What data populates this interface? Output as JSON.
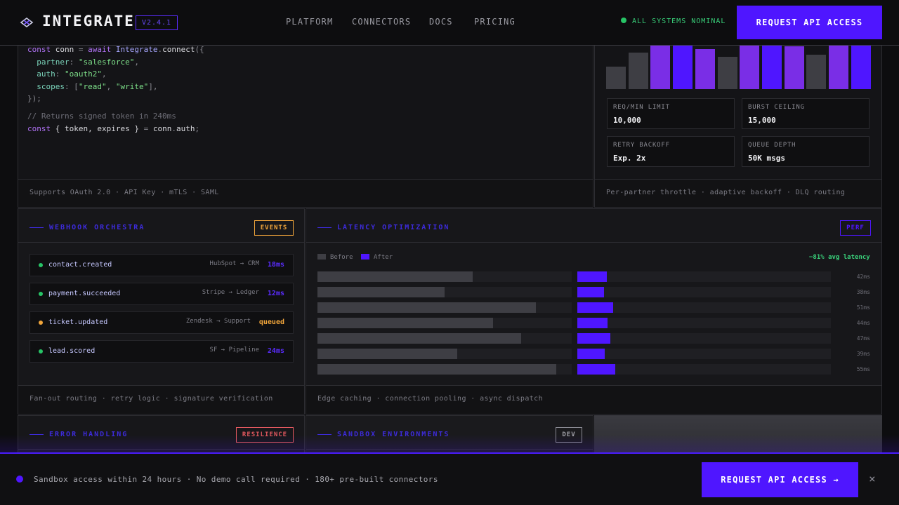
{
  "header": {
    "logo": "INTEGRATE",
    "version": "V2.4.1",
    "nav": [
      "PLATFORM",
      "CONNECTORS",
      "DOCS",
      "PRICING"
    ],
    "status": "ALL SYSTEMS NOMINAL",
    "cta": "REQUEST API ACCESS"
  },
  "code_panel": {
    "lines": {
      "l1_a": "const",
      "l1_b": " conn ",
      "l1_c": "= ",
      "l1_d": "await",
      "l1_e": " Integrate",
      "l1_f": ".",
      "l1_g": "connect",
      "l1_h": "({",
      "l2_key": "partner",
      "l2_val": "\"salesforce\"",
      "l3_key": "auth",
      "l3_val": "\"oauth2\"",
      "l4_key": "scopes",
      "l4_v1": "\"read\"",
      "l4_v2": "\"write\"",
      "l5": "});",
      "l6": "// Returns signed token in 240ms",
      "l7_a": "const",
      "l7_b": " { token, expires } ",
      "l7_c": "= ",
      "l7_d": "conn",
      "l7_e": ".",
      "l7_f": "auth",
      "l7_g": ";"
    },
    "footer": "Supports OAuth 2.0 · API Key · mTLS · SAML"
  },
  "throttle_panel": {
    "bars": [
      {
        "value": 0.52,
        "color": "#3e3e44"
      },
      {
        "value": 0.84,
        "color": "#3e3e44"
      },
      {
        "value": 1.0,
        "color": "#7a2ee6"
      },
      {
        "value": 1.0,
        "color": "#4f16ff"
      },
      {
        "value": 0.92,
        "color": "#7a2ee6"
      },
      {
        "value": 0.74,
        "color": "#3e3e44"
      },
      {
        "value": 1.0,
        "color": "#7a2ee6"
      },
      {
        "value": 1.0,
        "color": "#4f16ff"
      },
      {
        "value": 0.98,
        "color": "#7a2ee6"
      },
      {
        "value": 0.79,
        "color": "#3e3e44"
      },
      {
        "value": 1.0,
        "color": "#7a2ee6"
      },
      {
        "value": 1.0,
        "color": "#4f16ff"
      }
    ],
    "stats": [
      {
        "label": "REQ/MIN LIMIT",
        "value": "10,000"
      },
      {
        "label": "BURST CEILING",
        "value": "15,000"
      },
      {
        "label": "RETRY BACKOFF",
        "value": "Exp. 2x"
      },
      {
        "label": "QUEUE DEPTH",
        "value": "50K msgs"
      }
    ],
    "footer": "Per-partner throttle · adaptive backoff · DLQ routing"
  },
  "webhook_panel": {
    "title": "WEBHOOK ORCHESTRA",
    "badge": "EVENTS",
    "events": [
      {
        "name": "contact.created",
        "route": "HubSpot → CRM",
        "time": "18ms",
        "state": "ok"
      },
      {
        "name": "payment.succeeded",
        "route": "Stripe → Ledger",
        "time": "12ms",
        "state": "ok"
      },
      {
        "name": "ticket.updated",
        "route": "Zendesk → Support",
        "time": "queued",
        "state": "queued"
      },
      {
        "name": "lead.scored",
        "route": "SF → Pipeline",
        "time": "24ms",
        "state": "ok"
      }
    ],
    "footer": "Fan-out routing · retry logic · signature verification"
  },
  "latency_panel": {
    "title": "LATENCY OPTIMIZATION",
    "badge": "PERF",
    "legend_before": "Before",
    "legend_after": "After",
    "summary": "−81% avg latency",
    "rows": [
      {
        "before": 0.61,
        "after": 0.115,
        "ms": "42ms"
      },
      {
        "before": 0.5,
        "after": 0.105,
        "ms": "38ms"
      },
      {
        "before": 0.86,
        "after": 0.14,
        "ms": "51ms"
      },
      {
        "before": 0.69,
        "after": 0.12,
        "ms": "44ms"
      },
      {
        "before": 0.8,
        "after": 0.13,
        "ms": "47ms"
      },
      {
        "before": 0.55,
        "after": 0.108,
        "ms": "39ms"
      },
      {
        "before": 0.94,
        "after": 0.15,
        "ms": "55ms"
      }
    ],
    "footer": "Edge caching · connection pooling · async dispatch"
  },
  "error_panel": {
    "title": "ERROR HANDLING",
    "badge": "RESILIENCE"
  },
  "sandbox_panel": {
    "title": "SANDBOX ENVIRONMENTS",
    "badge": "DEV"
  },
  "banner": {
    "text": "Sandbox access within 24 hours · No demo call required · 180+ pre-built connectors",
    "cta": "REQUEST API ACCESS →",
    "close": "×"
  },
  "colors": {
    "accent": "#4f16ff",
    "ok": "#27c466",
    "queued": "#f2a63b",
    "error": "#e2585f"
  }
}
